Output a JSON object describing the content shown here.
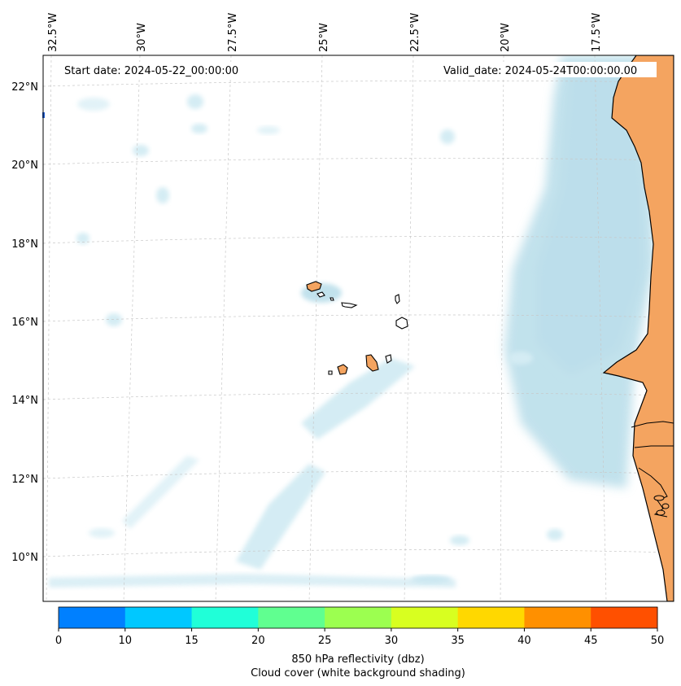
{
  "map": {
    "start_date": "Start date: 2024-05-22_00:00:00",
    "valid_date": "Valid_date: 2024-05-24T00:00:00.00",
    "lon_labels": [
      "32.5°W",
      "30°W",
      "27.5°W",
      "25°W",
      "22.5°W",
      "20°W",
      "17.5°W"
    ],
    "lat_labels": [
      "22°N",
      "20°N",
      "18°N",
      "16°N",
      "14°N",
      "12°N",
      "10°N"
    ],
    "land_color": "#f4a460",
    "cloud_color": "#add8e6"
  },
  "colorbar": {
    "ticks": [
      "0",
      "10",
      "15",
      "20",
      "25",
      "30",
      "35",
      "40",
      "45",
      "50"
    ],
    "colors": [
      "#0080ff",
      "#00c8ff",
      "#20ffd8",
      "#60ff90",
      "#9cff50",
      "#d8ff20",
      "#ffd800",
      "#ff9000",
      "#ff5000"
    ],
    "label_line1": "850 hPa reflectivity (dbz)",
    "label_line2": "Cloud cover (white background shading)"
  }
}
